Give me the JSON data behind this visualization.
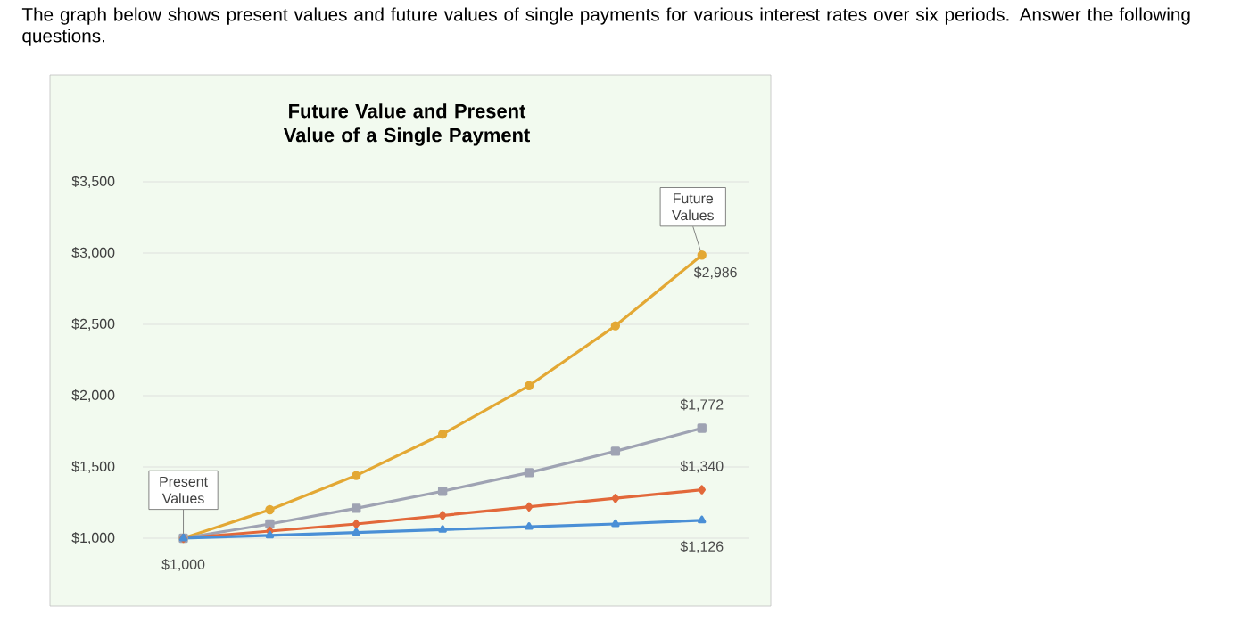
{
  "chart_data": {
    "type": "line",
    "title": "Future Value and Present Value of a Single Payment",
    "annotations": [
      "The graph below shows present values and future values of single payments for various interest rates over six periods. Answer the following questions.",
      "Present Values",
      "Future Values"
    ],
    "categories": [
      null,
      null,
      null,
      null,
      null,
      null,
      null
    ],
    "ylim": [
      1000,
      3500
    ],
    "yticks": [
      {
        "value": 1000,
        "label": "$1,000"
      },
      {
        "value": 1500,
        "label": "$1,500"
      },
      {
        "value": 2000,
        "label": "$2,000"
      },
      {
        "value": 2500,
        "label": "$2,500"
      },
      {
        "value": 3000,
        "label": "$3,000"
      },
      {
        "value": 3500,
        "label": "$3,500"
      }
    ],
    "grid": "y",
    "series": [
      {
        "color": "#e3a834",
        "marker": "circle",
        "values": [
          1000,
          1200,
          1440,
          1730,
          2070,
          2490,
          2986
        ],
        "value_labels": [
          null,
          null,
          null,
          null,
          null,
          null,
          "$2,986"
        ]
      },
      {
        "color": "#9fa3b3",
        "marker": "square",
        "values": [
          1000,
          1100,
          1210,
          1330,
          1460,
          1610,
          1772
        ],
        "value_labels": [
          null,
          null,
          null,
          null,
          null,
          null,
          "$1,772"
        ]
      },
      {
        "color": "#e2683a",
        "marker": "diamond",
        "values": [
          1000,
          1050,
          1100,
          1160,
          1220,
          1280,
          1340
        ],
        "value_labels": [
          null,
          null,
          null,
          null,
          null,
          null,
          "$1,340"
        ]
      },
      {
        "color": "#4a8fd6",
        "marker": "triangle",
        "values": [
          1000,
          1020,
          1040,
          1060,
          1080,
          1100,
          1126
        ],
        "value_labels": [
          "$1,000",
          null,
          null,
          null,
          null,
          null,
          "$1,126"
        ]
      }
    ]
  }
}
